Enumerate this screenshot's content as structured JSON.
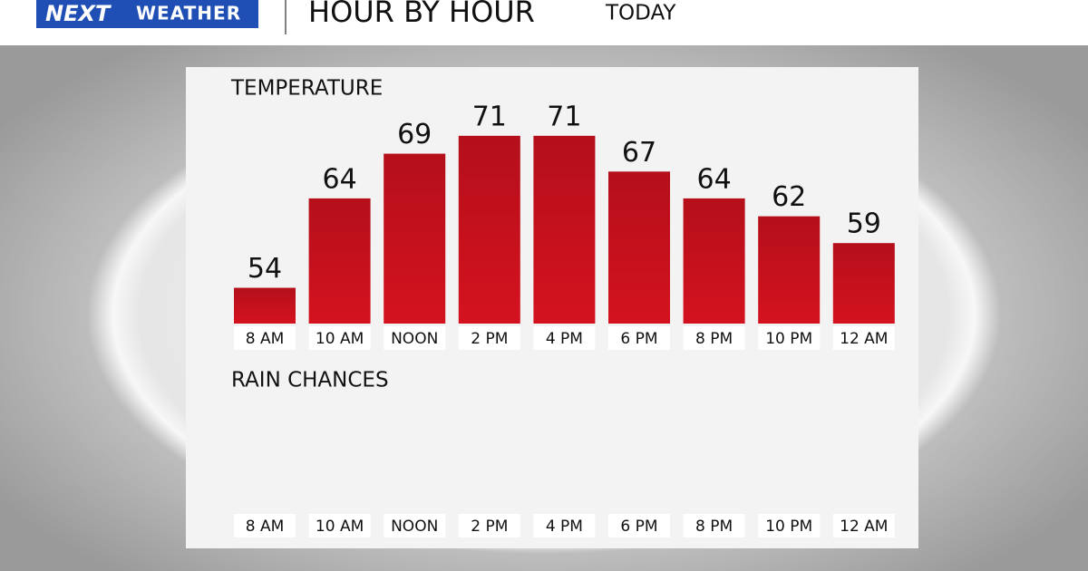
{
  "header": {
    "logo_left": "NEXT",
    "logo_right": "WEATHER",
    "title": "HOUR BY HOUR",
    "subtitle": "TODAY"
  },
  "chart_data": [
    {
      "type": "bar",
      "title": "TEMPERATURE",
      "categories": [
        "8 AM",
        "10 AM",
        "NOON",
        "2 PM",
        "4 PM",
        "6 PM",
        "8 PM",
        "10 PM",
        "12 AM"
      ],
      "values": [
        54,
        64,
        69,
        71,
        71,
        67,
        64,
        62,
        59
      ],
      "color": "#d4121f",
      "ylim": [
        50,
        72
      ]
    },
    {
      "type": "bar",
      "title": "RAIN CHANCES",
      "categories": [
        "8 AM",
        "10 AM",
        "NOON",
        "2 PM",
        "4 PM",
        "6 PM",
        "8 PM",
        "10 PM",
        "12 AM"
      ]
    }
  ]
}
